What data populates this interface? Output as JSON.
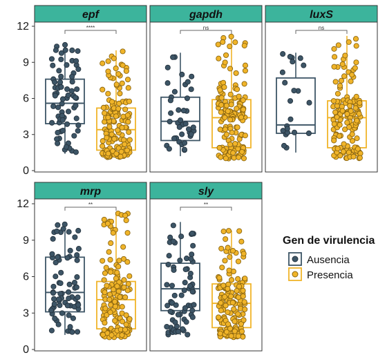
{
  "chart_data": {
    "type": "box",
    "y_range": [
      0,
      12
    ],
    "y_ticks": [
      "0",
      "3",
      "6",
      "9",
      "12"
    ],
    "legend": {
      "title": "Gen de virulencia",
      "position": "right",
      "items": [
        {
          "name": "Ausencia",
          "color": "#3d5566"
        },
        {
          "name": "Presencia",
          "color": "#f0b429"
        }
      ]
    },
    "colors": {
      "strip_fill": "#3cb49c",
      "panel_border": "#333333",
      "bracket": "#666666"
    },
    "panels": [
      {
        "label": "epf",
        "significance": "****",
        "groups": [
          {
            "name": "Ausencia",
            "q1": 3.9,
            "median": 5.6,
            "q3": 7.6,
            "whisker_low": 1.4,
            "whisker_high": 10.5
          },
          {
            "name": "Presencia",
            "q1": 1.7,
            "median": 3.4,
            "q3": 5.2,
            "whisker_low": 1.1,
            "whisker_high": 10.0
          }
        ]
      },
      {
        "label": "gapdh",
        "significance": "ns",
        "groups": [
          {
            "name": "Ausencia",
            "q1": 2.5,
            "median": 4.1,
            "q3": 6.1,
            "whisker_low": 1.2,
            "whisker_high": 9.8
          },
          {
            "name": "Presencia",
            "q1": 1.9,
            "median": 4.4,
            "q3": 5.9,
            "whisker_low": 1.0,
            "whisker_high": 11.2
          }
        ]
      },
      {
        "label": "luxS",
        "significance": "ns",
        "groups": [
          {
            "name": "Ausencia",
            "q1": 3.1,
            "median": 3.8,
            "q3": 7.7,
            "whisker_low": 1.5,
            "whisker_high": 9.8
          },
          {
            "name": "Presencia",
            "q1": 1.9,
            "median": 4.4,
            "q3": 5.8,
            "whisker_low": 1.0,
            "whisker_high": 11.2
          }
        ]
      },
      {
        "label": "mrp",
        "significance": "**",
        "groups": [
          {
            "name": "Ausencia",
            "q1": 3.1,
            "median": 4.7,
            "q3": 7.6,
            "whisker_low": 1.2,
            "whisker_high": 10.4
          },
          {
            "name": "Presencia",
            "q1": 1.7,
            "median": 4.1,
            "q3": 5.6,
            "whisker_low": 1.0,
            "whisker_high": 11.3
          }
        ]
      },
      {
        "label": "sly",
        "significance": "**",
        "groups": [
          {
            "name": "Ausencia",
            "q1": 3.2,
            "median": 5.0,
            "q3": 7.1,
            "whisker_low": 1.2,
            "whisker_high": 10.5
          },
          {
            "name": "Presencia",
            "q1": 1.8,
            "median": 3.8,
            "q3": 5.4,
            "whisker_low": 1.0,
            "whisker_high": 9.8
          }
        ]
      }
    ]
  }
}
